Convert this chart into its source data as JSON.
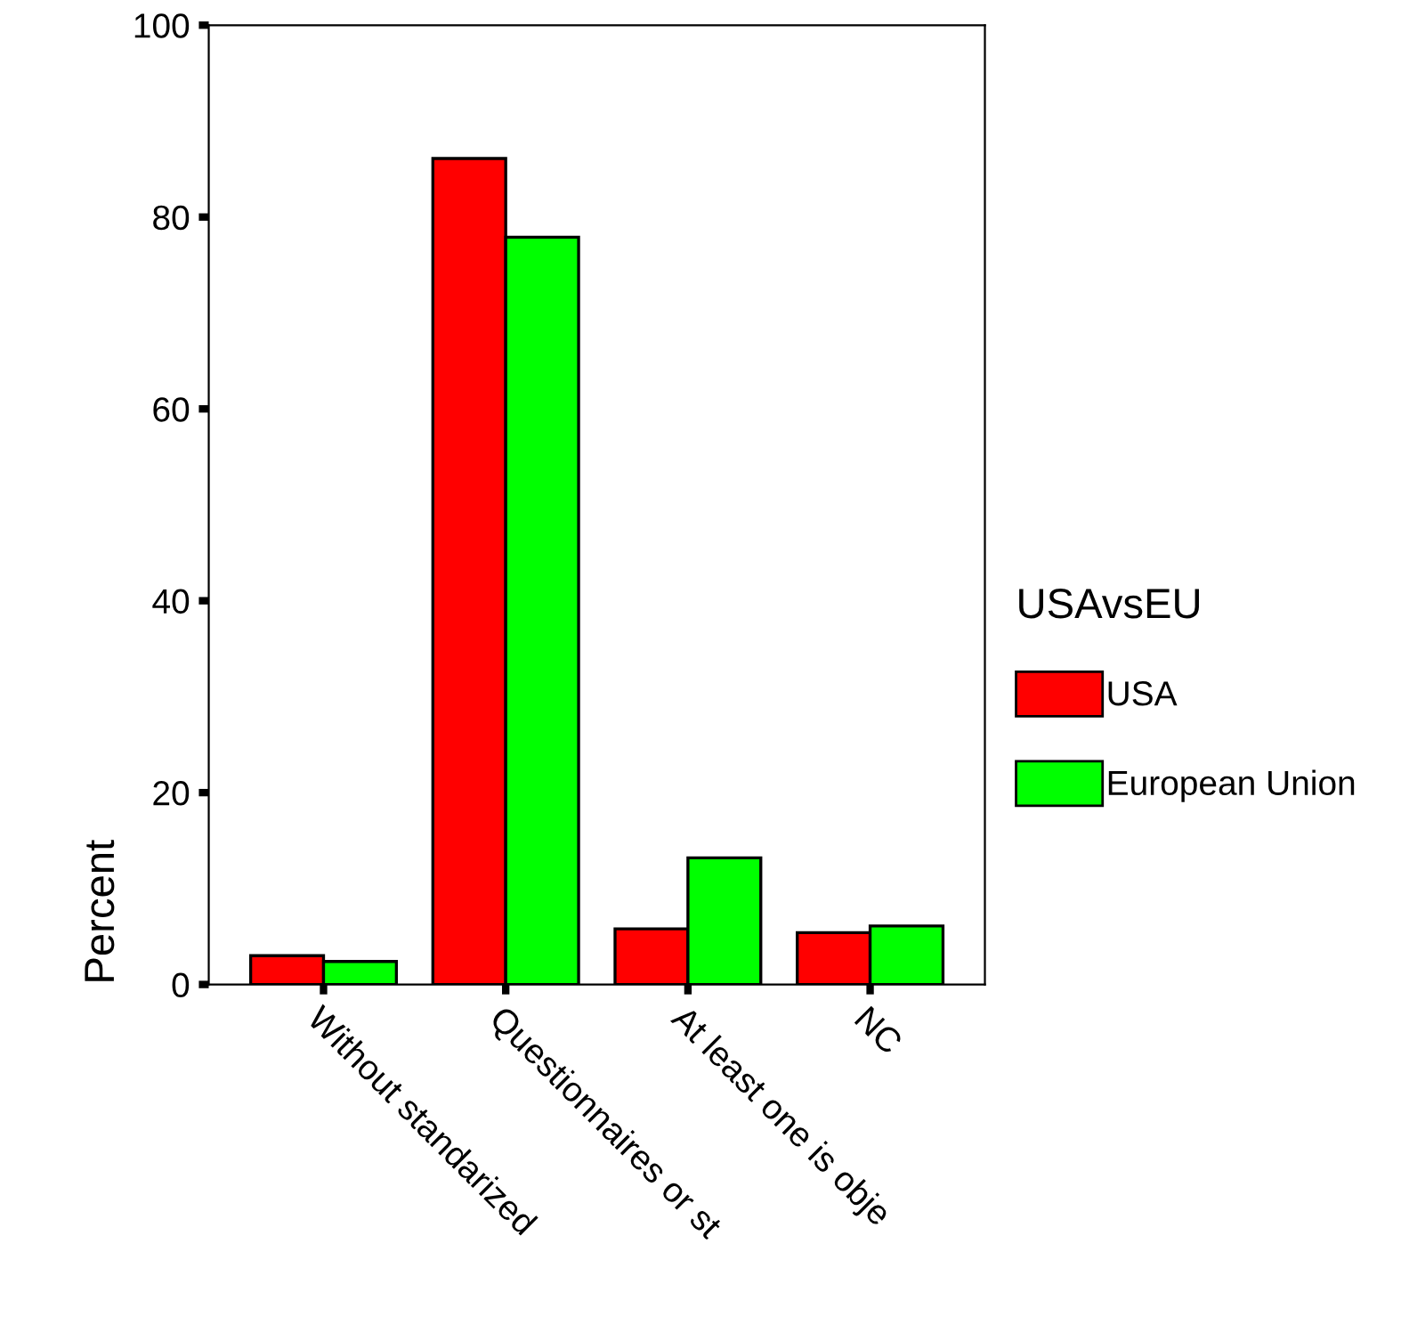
{
  "chart_data": {
    "type": "bar",
    "ylabel": "Percent",
    "legend_title": "USAvsEU",
    "legend": "right",
    "categories": [
      "Without standarized",
      "Questionnaires or st",
      "At least one is obje",
      "NC"
    ],
    "series": [
      {
        "name": "USA",
        "color": "#ff0000",
        "values": [
          3.0,
          86.1,
          5.8,
          5.4
        ]
      },
      {
        "name": "European Union",
        "color": "#00ff00",
        "values": [
          2.4,
          77.9,
          13.2,
          6.1
        ]
      }
    ],
    "ylim": [
      0,
      100
    ],
    "yticks": [
      0,
      20,
      40,
      60,
      80,
      100
    ],
    "grid": false
  }
}
